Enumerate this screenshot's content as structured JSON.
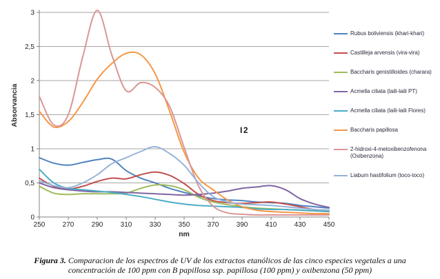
{
  "colors": {
    "background": "#FFFFFF",
    "gridline": "#A6A6A6",
    "axis_line": "#808080",
    "tick_text": "#262626",
    "legend_text": "#26263A",
    "annotation_text": "#1A1A1A",
    "caption_text": "#101010"
  },
  "chart": {
    "y_axis_title": "Absorvancia",
    "x_axis_title": "nm",
    "y_tick_labels": [
      "0",
      "0,5",
      "1",
      "1,5",
      "2",
      "2,5",
      "3"
    ],
    "y_tick_values": [
      0,
      0.5,
      1,
      1.5,
      2,
      2.5,
      3
    ],
    "x_tick_values": [
      250,
      270,
      290,
      310,
      330,
      350,
      370,
      390,
      410,
      430,
      450
    ],
    "annotation": {
      "text": "I2",
      "x_nm": 389,
      "y_value": 1.26
    }
  },
  "chart_data": {
    "type": "line",
    "title": "",
    "xlabel": "nm",
    "ylabel": "Absorvancia",
    "xlim": [
      250,
      450
    ],
    "ylim": [
      0,
      3
    ],
    "grid": true,
    "legend_position": "right",
    "x": [
      250,
      260,
      270,
      280,
      290,
      300,
      310,
      320,
      330,
      340,
      350,
      360,
      370,
      380,
      390,
      400,
      410,
      420,
      430,
      440,
      450
    ],
    "series": [
      {
        "name": "Rubus boliviensis (khari-khari)",
        "color": "#4F81BD",
        "values": [
          0.87,
          0.79,
          0.76,
          0.8,
          0.84,
          0.85,
          0.68,
          0.57,
          0.5,
          0.42,
          0.36,
          0.31,
          0.27,
          0.25,
          0.24,
          0.22,
          0.21,
          0.2,
          0.17,
          0.15,
          0.13
        ]
      },
      {
        "name": "Castilleja arvensis (vira-vira)",
        "color": "#C0504D",
        "values": [
          0.57,
          0.45,
          0.41,
          0.45,
          0.52,
          0.57,
          0.56,
          0.62,
          0.66,
          0.61,
          0.49,
          0.33,
          0.24,
          0.21,
          0.2,
          0.21,
          0.22,
          0.19,
          0.15,
          0.11,
          0.09
        ]
      },
      {
        "name": "Baccharis genistilloides (charara)",
        "color": "#9BBB59",
        "values": [
          0.45,
          0.35,
          0.33,
          0.34,
          0.34,
          0.34,
          0.35,
          0.42,
          0.47,
          0.46,
          0.4,
          0.29,
          0.22,
          0.18,
          0.15,
          0.13,
          0.12,
          0.11,
          0.1,
          0.09,
          0.08
        ]
      },
      {
        "name": "Acmella ciliata (laili-laili PT)",
        "color": "#8064A2",
        "values": [
          0.5,
          0.43,
          0.4,
          0.38,
          0.37,
          0.37,
          0.36,
          0.35,
          0.34,
          0.33,
          0.32,
          0.33,
          0.35,
          0.38,
          0.42,
          0.44,
          0.46,
          0.4,
          0.27,
          0.19,
          0.14
        ]
      },
      {
        "name": "Acmella ciliata (laili-laili Flores)",
        "color": "#4BACC6",
        "values": [
          0.7,
          0.5,
          0.42,
          0.4,
          0.38,
          0.36,
          0.33,
          0.3,
          0.26,
          0.22,
          0.19,
          0.17,
          0.16,
          0.15,
          0.14,
          0.12,
          0.11,
          0.11,
          0.1,
          0.09,
          0.08
        ]
      },
      {
        "name": "Baccharis papillosa",
        "color": "#F79646",
        "values": [
          1.55,
          1.32,
          1.4,
          1.68,
          2.02,
          2.25,
          2.4,
          2.38,
          2.1,
          1.55,
          0.95,
          0.57,
          0.4,
          0.25,
          0.15,
          0.1,
          0.08,
          0.07,
          0.06,
          0.05,
          0.05
        ]
      },
      {
        "name": "2-hidroxi-4-metoxibenzofenona (Oxibenzona)",
        "color": "#D99694",
        "values": [
          1.77,
          1.35,
          1.5,
          2.35,
          3.03,
          2.38,
          1.85,
          1.97,
          1.9,
          1.62,
          1.02,
          0.45,
          0.16,
          0.06,
          0.04,
          0.03,
          0.03,
          0.03,
          0.03,
          0.03,
          0.03
        ]
      },
      {
        "name": "Liabum hastifolium (toco-toco)",
        "color": "#95B3D7",
        "values": [
          0.53,
          0.46,
          0.43,
          0.5,
          0.62,
          0.78,
          0.87,
          0.96,
          1.03,
          0.93,
          0.76,
          0.5,
          0.3,
          0.22,
          0.19,
          0.18,
          0.17,
          0.15,
          0.13,
          0.11,
          0.1
        ]
      }
    ]
  },
  "caption": {
    "label": "Figura 3.",
    "line1": "Comparacion de los espectros de UV de los extractos etanólicos de las cinco especies vegetales a una",
    "line2": "concentración de 100 ppm con B papillosa ssp. papillosa (100 ppm) y oxibenzona (50 ppm)"
  }
}
